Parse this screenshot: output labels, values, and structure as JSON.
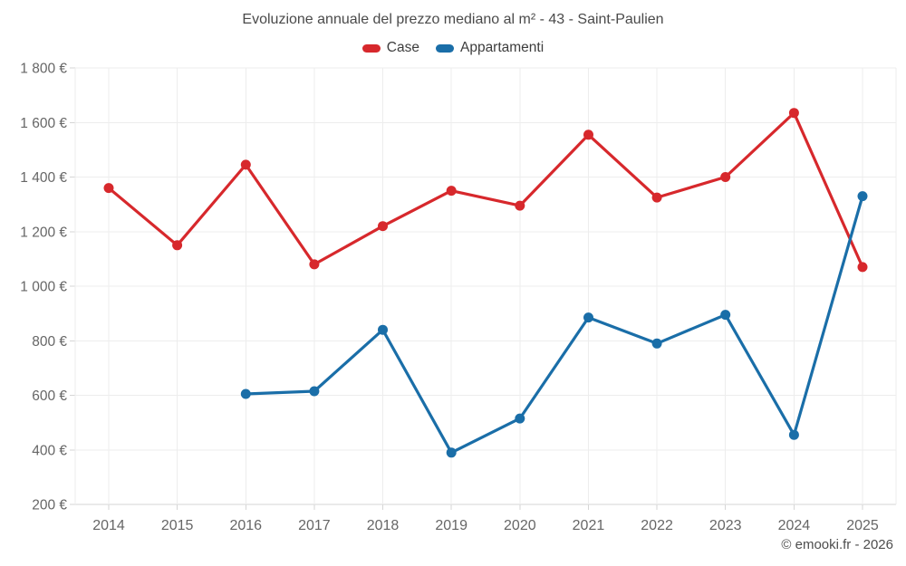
{
  "title": "Evoluzione annuale del prezzo mediano al m² - 43 - Saint-Paulien",
  "attribution": "© emooki.fr - 2026",
  "colors": {
    "grid": "#ededed",
    "axis": "#d6d6d6",
    "tick_label": "#666666",
    "title_text": "#4a4a4a"
  },
  "chart_data": {
    "type": "line",
    "title": "Evoluzione annuale del prezzo mediano al m² - 43 - Saint-Paulien",
    "x": [
      2014,
      2015,
      2016,
      2017,
      2018,
      2019,
      2020,
      2021,
      2022,
      2023,
      2024,
      2025
    ],
    "series": [
      {
        "name": "Case",
        "color": "#d7282c",
        "values": [
          1360,
          1150,
          1445,
          1080,
          1220,
          1350,
          1295,
          1555,
          1325,
          1400,
          1635,
          1070
        ]
      },
      {
        "name": "Appartamenti",
        "color": "#1a6ea8",
        "values": [
          null,
          null,
          605,
          615,
          840,
          390,
          515,
          885,
          790,
          895,
          455,
          1330
        ]
      }
    ],
    "ylim": [
      200,
      1800
    ],
    "ytick_step": 200,
    "ytick_format": "{value} €",
    "xlabel": "",
    "ylabel": "",
    "grid": true,
    "legend_position": "top"
  }
}
